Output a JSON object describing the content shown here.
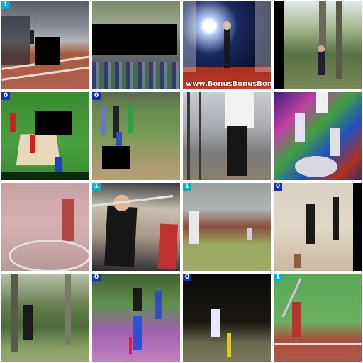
{
  "grid": {
    "tiles": [
      {
        "badge": "1",
        "badge_class": "c1",
        "scene": "indoor running track with hammer thrower",
        "masked": true
      },
      {
        "badge": "",
        "badge_class": "",
        "scene": "outdoor field with people, noisy colors",
        "masked": true
      },
      {
        "badge": "",
        "badge_class": "",
        "scene": "night stadium thrower under floodlights",
        "masked": false,
        "watermark": "www.BonusBonusBonus.com"
      },
      {
        "badge": "",
        "badge_class": "",
        "scene": "woman in forest clearing",
        "masked": false
      },
      {
        "badge": "0",
        "badge_class": "c0",
        "scene": "cricket pitch green field players in red",
        "masked": true
      },
      {
        "badge": "0",
        "badge_class": "c0",
        "scene": "cricket match batsman",
        "masked": true
      },
      {
        "badge": "",
        "badge_class": "",
        "scene": "indoor hammer throw cage",
        "masked": false
      },
      {
        "badge": "",
        "badge_class": "",
        "scene": "psychedelic discus throw",
        "masked": false
      },
      {
        "badge": "",
        "badge_class": "",
        "scene": "pink throwing cage",
        "masked": false
      },
      {
        "badge": "1",
        "badge_class": "c1",
        "scene": "javelin athlete close up",
        "masked": false
      },
      {
        "badge": "1",
        "badge_class": "c1",
        "scene": "indoor cricket net bowler",
        "masked": false
      },
      {
        "badge": "0",
        "badge_class": "c0",
        "scene": "indoor cricket batsman",
        "masked": false
      },
      {
        "badge": "",
        "badge_class": "",
        "scene": "forest thrower",
        "masked": false
      },
      {
        "badge": "0",
        "badge_class": "c0",
        "scene": "cricket players purple tint",
        "masked": false
      },
      {
        "badge": "0",
        "badge_class": "c0",
        "scene": "night cricket bowler",
        "masked": false
      },
      {
        "badge": "1",
        "badge_class": "c1",
        "scene": "javelin thrower on track",
        "masked": false
      }
    ]
  },
  "colors": {
    "badge_one": "#00b4c8",
    "badge_zero": "#1030c8",
    "mask": "#000000"
  }
}
